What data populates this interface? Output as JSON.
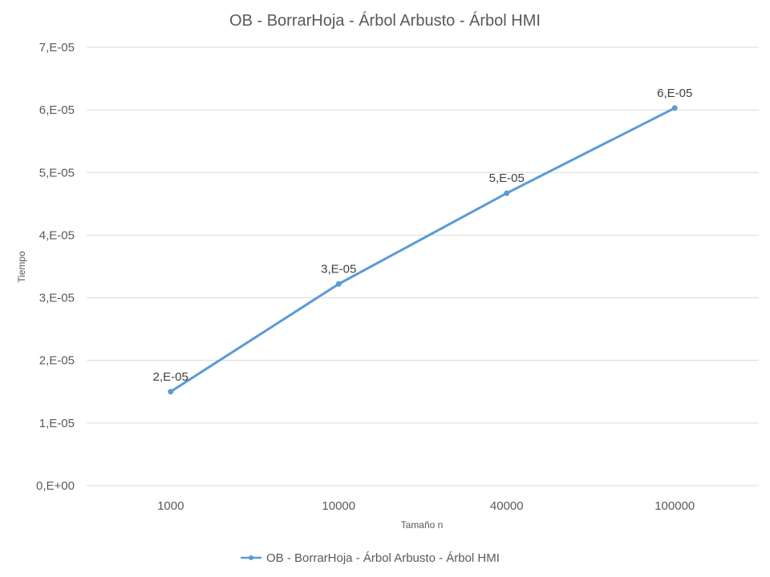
{
  "chart_data": {
    "type": "line",
    "title": "OB - BorrarHoja - Árbol Arbusto - Árbol HMI",
    "xlabel": "Tamaño n",
    "ylabel": "Tiempo",
    "categories": [
      "1000",
      "10000",
      "40000",
      "100000"
    ],
    "yticks": [
      "0,E+00",
      "1,E-05",
      "2,E-05",
      "3,E-05",
      "4,E-05",
      "5,E-05",
      "6,E-05",
      "7,E-05"
    ],
    "ylim": [
      0,
      7e-05
    ],
    "grid": true,
    "legend_position": "bottom",
    "series": [
      {
        "name": "OB - BorrarHoja - Árbol Arbusto - Árbol HMI",
        "color": "#5b9bd5",
        "values": [
          1.5e-05,
          3.22e-05,
          4.67e-05,
          6.03e-05
        ],
        "data_labels": [
          "2,E-05",
          "3,E-05",
          "5,E-05",
          "6,E-05"
        ]
      }
    ]
  }
}
